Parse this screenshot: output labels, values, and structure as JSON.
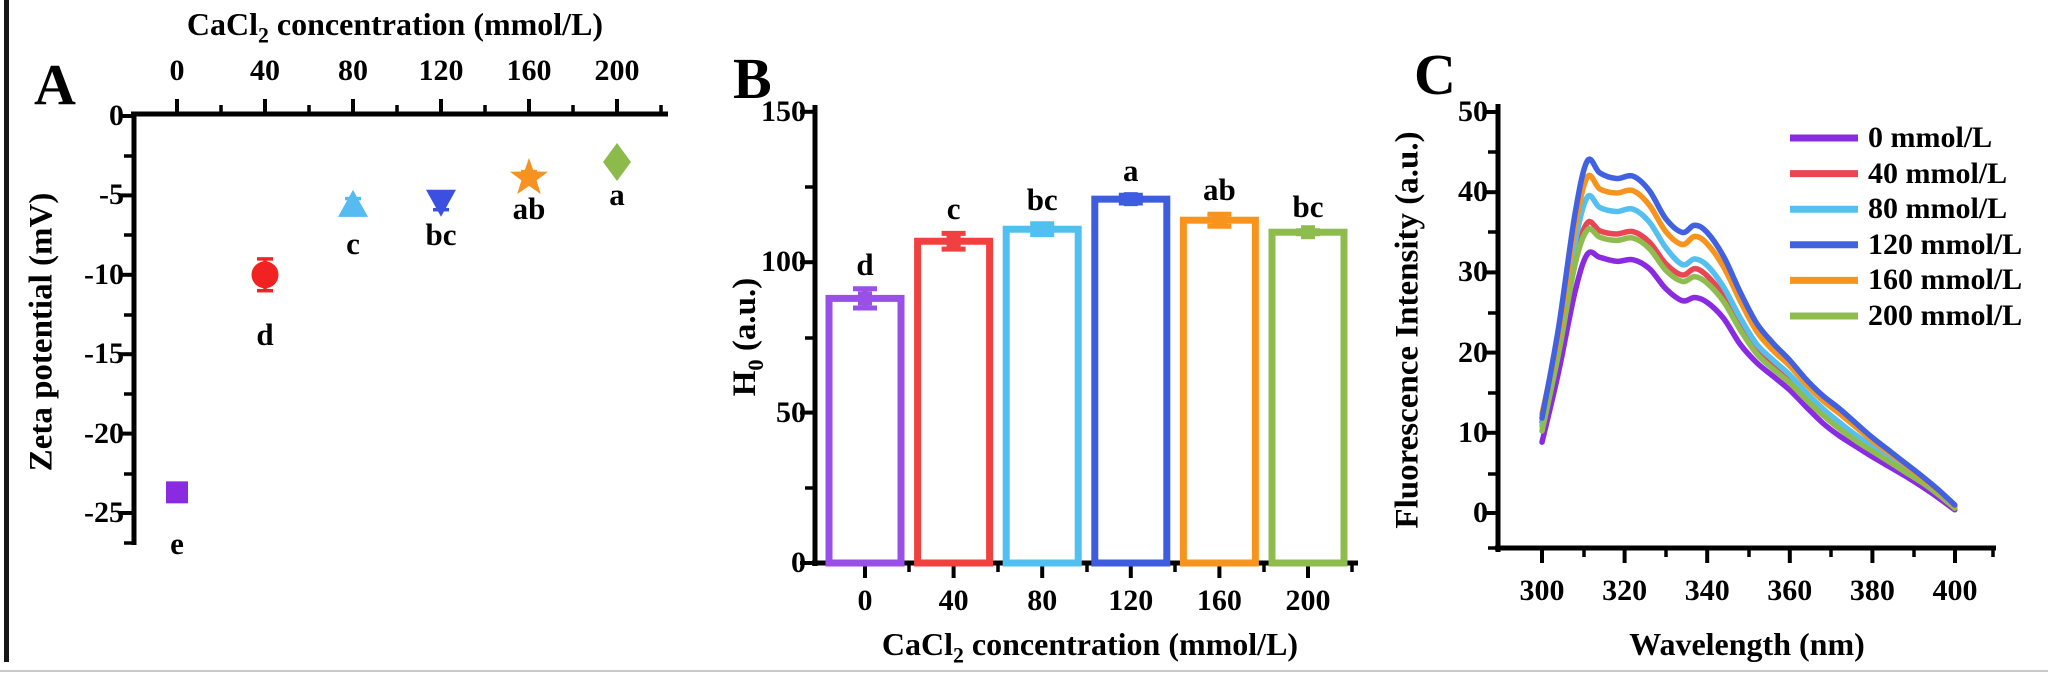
{
  "page": {
    "background": "#ffffff",
    "frame_left_color": "#161616",
    "frame_bottom_color": "#c9c9c9"
  },
  "panels": {
    "a_label": "A",
    "b_label": "B",
    "c_label": "C"
  },
  "chart_data": [
    {
      "id": "A",
      "type": "scatter",
      "title_top": {
        "pre": "CaCl",
        "sub": "2",
        "post": " concentration (mmol/L)"
      },
      "ylabel": "Zeta potential (mV)",
      "x_ticks": [
        "0",
        "40",
        "80",
        "120",
        "160",
        "200"
      ],
      "y_ticks": [
        "0",
        "-5",
        "-10",
        "-15",
        "-20",
        "-25"
      ],
      "xlim": [
        0,
        200
      ],
      "ylim": [
        -27,
        0
      ],
      "grid": false,
      "points": [
        {
          "x": 0,
          "y": -23.7,
          "err": 0.5,
          "letter": "e",
          "marker": "square",
          "color": "#8a2be2"
        },
        {
          "x": 40,
          "y": -10.0,
          "err": 1.0,
          "letter": "d",
          "marker": "circle",
          "color": "#f22222"
        },
        {
          "x": 80,
          "y": -5.6,
          "err": 0.4,
          "letter": "c",
          "marker": "triangle-up",
          "color": "#55bbf0"
        },
        {
          "x": 120,
          "y": -5.4,
          "err": 0.5,
          "letter": "bc",
          "marker": "triangle-down",
          "color": "#3b4fe0"
        },
        {
          "x": 160,
          "y": -3.9,
          "err": 0.4,
          "letter": "ab",
          "marker": "star",
          "color": "#f59222"
        },
        {
          "x": 200,
          "y": -2.9,
          "err": 0.4,
          "letter": "a",
          "marker": "diamond",
          "color": "#8cbb4c"
        }
      ]
    },
    {
      "id": "B",
      "type": "bar",
      "ylabel": {
        "pre": "H",
        "sub": "0",
        "post": " (a.u.)"
      },
      "xlabel": {
        "pre": "CaCl",
        "sub": "2",
        "post": " concentration (mmol/L)"
      },
      "categories": [
        "0",
        "40",
        "80",
        "120",
        "160",
        "200"
      ],
      "values": [
        88,
        107,
        111,
        121,
        114,
        110
      ],
      "errors": [
        3.2,
        2.6,
        1.8,
        1.3,
        2.0,
        0.5
      ],
      "letters": [
        "d",
        "c",
        "bc",
        "a",
        "ab",
        "bc"
      ],
      "colors": [
        "#9850e8",
        "#f04040",
        "#4fc0f0",
        "#3d5ce0",
        "#f7941d",
        "#8fbc4f"
      ],
      "y_ticks": [
        "0",
        "50",
        "100",
        "150"
      ],
      "ylim": [
        0,
        150
      ],
      "bar_fill": "#ffffff",
      "grid": false
    },
    {
      "id": "C",
      "type": "line",
      "xlabel": "Wavelength (nm)",
      "ylabel": "Fluorescence Intensity (a.u.)",
      "x_ticks": [
        "300",
        "320",
        "340",
        "360",
        "380",
        "400"
      ],
      "y_ticks": [
        "0",
        "10",
        "20",
        "30",
        "40",
        "50"
      ],
      "xlim": [
        300,
        400
      ],
      "ylim": [
        0,
        50
      ],
      "grid": false,
      "legend_position": "top-right",
      "wavelengths": [
        300,
        304,
        308,
        311,
        314,
        318,
        322,
        326,
        330,
        334,
        337,
        340,
        344,
        348,
        352,
        356,
        360,
        364,
        368,
        372,
        376,
        380,
        384,
        388,
        392,
        396,
        400
      ],
      "series": [
        {
          "name": "0 mmol/L",
          "color": "#8a2be2",
          "values": [
            8.8,
            17.5,
            27.5,
            32.2,
            31.8,
            31.3,
            31.5,
            30.4,
            27.9,
            26.4,
            26.8,
            26.2,
            24.2,
            21.0,
            18.7,
            17.0,
            15.3,
            13.2,
            11.2,
            9.6,
            8.3,
            7.0,
            5.8,
            4.6,
            3.3,
            1.9,
            0.4
          ]
        },
        {
          "name": "40 mmol/L",
          "color": "#e84652",
          "values": [
            11.3,
            20.5,
            31.5,
            36.1,
            35.1,
            34.7,
            35.0,
            33.7,
            31.0,
            29.6,
            30.4,
            29.5,
            27.0,
            23.4,
            20.3,
            18.4,
            16.6,
            14.5,
            12.5,
            10.8,
            9.3,
            8.0,
            6.7,
            5.4,
            4.0,
            2.4,
            0.7
          ]
        },
        {
          "name": "80 mmol/L",
          "color": "#55c0f0",
          "values": [
            10.8,
            21.5,
            33.6,
            39.3,
            38.0,
            37.5,
            37.8,
            36.2,
            33.0,
            30.9,
            31.6,
            30.8,
            28.1,
            24.3,
            21.0,
            19.0,
            17.2,
            15.0,
            13.0,
            11.3,
            9.7,
            8.3,
            7.0,
            5.7,
            4.2,
            2.6,
            0.8
          ]
        },
        {
          "name": "120 mmol/L",
          "color": "#4161e0",
          "values": [
            11.8,
            23.0,
            37.2,
            43.8,
            42.3,
            41.6,
            41.9,
            40.1,
            36.6,
            34.9,
            35.8,
            34.9,
            31.9,
            27.5,
            23.6,
            21.1,
            19.0,
            16.6,
            14.6,
            13.0,
            11.2,
            9.4,
            7.8,
            6.2,
            4.6,
            2.9,
            1.0
          ]
        },
        {
          "name": "160 mmol/L",
          "color": "#f7941d",
          "values": [
            12.3,
            22.2,
            35.5,
            41.8,
            40.3,
            39.8,
            40.1,
            38.3,
            35.0,
            33.4,
            34.4,
            33.5,
            30.6,
            26.4,
            22.6,
            20.2,
            18.3,
            16.0,
            14.0,
            12.4,
            10.7,
            9.0,
            7.5,
            6.0,
            4.4,
            2.8,
            0.9
          ]
        },
        {
          "name": "200 mmol/L",
          "color": "#8fbc4f",
          "values": [
            10.2,
            19.8,
            30.9,
            35.2,
            34.3,
            33.9,
            34.2,
            32.9,
            30.2,
            28.8,
            29.4,
            28.6,
            26.3,
            22.8,
            19.8,
            17.9,
            16.2,
            14.1,
            12.2,
            10.5,
            9.0,
            7.7,
            6.4,
            5.1,
            3.8,
            2.3,
            0.6
          ]
        }
      ]
    }
  ]
}
